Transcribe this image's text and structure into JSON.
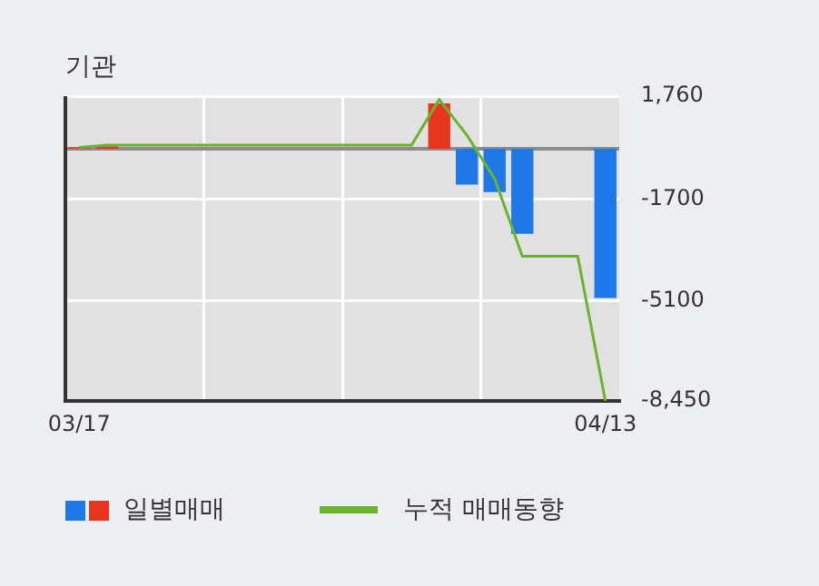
{
  "chart_data": {
    "type": "bar",
    "title": "기관",
    "categories": [
      "03/17",
      null,
      null,
      null,
      null,
      null,
      null,
      null,
      null,
      null,
      null,
      null,
      null,
      null,
      null,
      null,
      null,
      null,
      null,
      "04/13"
    ],
    "series": [
      {
        "name": "일별매매",
        "colors": [
          "#e8361e",
          "#e8361e",
          "#e8361e",
          "#e8361e",
          "#e8361e",
          "#e8361e",
          "#e8361e",
          "#e8361e",
          "#e8361e",
          "#e8361e",
          "#e8361e",
          "#e8361e",
          "#e8361e",
          "#e8361e",
          "#1f78e8",
          "#1f78e8",
          "#1f78e8",
          "#1f78e8",
          "#1f78e8",
          "#1f78e8"
        ],
        "values": [
          40,
          80,
          0,
          0,
          0,
          0,
          0,
          0,
          0,
          0,
          0,
          0,
          0,
          1520,
          -1200,
          -1450,
          -2850,
          0,
          0,
          -5000
        ]
      },
      {
        "name": "누적 매매동향",
        "type": "line",
        "color": "#6ab42c",
        "values": [
          40,
          120,
          120,
          120,
          120,
          120,
          120,
          120,
          120,
          120,
          120,
          120,
          120,
          1650,
          450,
          -1000,
          -3600,
          -3600,
          -3600,
          -8450
        ]
      }
    ],
    "ylim": [
      -8450,
      1760
    ],
    "yticks": [
      {
        "value": 1760,
        "label": "1,760"
      },
      {
        "value": -1700,
        "label": "-1700"
      },
      {
        "value": -5100,
        "label": "-5100"
      },
      {
        "value": -8450,
        "label": "-8,450"
      }
    ],
    "ref_lines": [
      {
        "axis": "y",
        "value": 0,
        "color": "#8c8c8c"
      }
    ],
    "grid": true,
    "legend": "bottom",
    "marker": "none",
    "line_style": "solid"
  }
}
